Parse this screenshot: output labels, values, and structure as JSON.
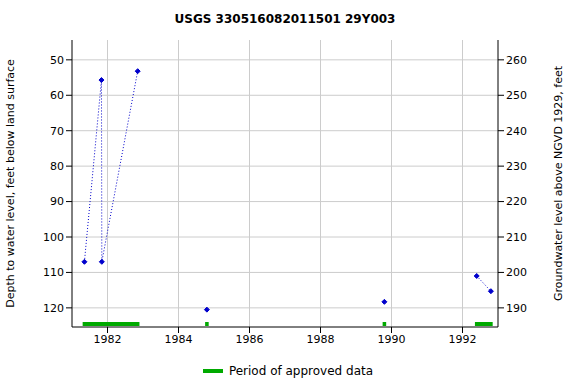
{
  "chart_data": {
    "type": "line",
    "title": "USGS 330516082011501 29Y003",
    "ylabel": "Depth to water level, feet below land surface",
    "y2label": "Groundwater level above NGVD 1929, feet",
    "xlim": [
      1981,
      1993
    ],
    "xticks": [
      1982,
      1984,
      1986,
      1988,
      1990,
      1992
    ],
    "ylim": [
      125.4,
      44.4
    ],
    "yticks": [
      50,
      60,
      70,
      80,
      90,
      100,
      110,
      120
    ],
    "y2lim": [
      184.6,
      265.6
    ],
    "y2ticks": [
      190,
      200,
      210,
      220,
      230,
      240,
      250,
      260
    ],
    "grid": true,
    "color": "#0000cc",
    "marker": "diamond",
    "line_style": "dotted",
    "groups": [
      {
        "x": [
          1981.35,
          1981.83,
          1981.84,
          1982.85
        ],
        "values": [
          107,
          55.7,
          107,
          53.2
        ]
      },
      {
        "x": [
          1984.8
        ],
        "values": [
          120.5
        ]
      },
      {
        "x": [
          1989.8
        ],
        "values": [
          118.3
        ]
      },
      {
        "x": [
          1992.4,
          1992.8
        ],
        "values": [
          111,
          115.3
        ]
      }
    ],
    "approved_periods": {
      "name": "Period of approved data",
      "color": "#00aa00",
      "ranges": [
        [
          1981.3,
          1982.9
        ],
        [
          1984.75,
          1984.85
        ],
        [
          1989.75,
          1989.85
        ],
        [
          1992.35,
          1992.85
        ]
      ]
    },
    "legend": "bottom"
  }
}
